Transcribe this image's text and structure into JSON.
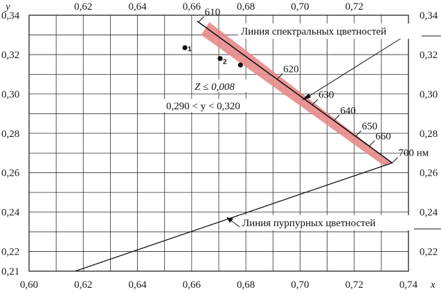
{
  "chart_data": {
    "type": "diagram",
    "axes": {
      "x": {
        "label": "x",
        "range": [
          0.6,
          0.74
        ],
        "grid_step": 0.01,
        "ticks": [
          "0,60",
          "0,62",
          "0,64",
          "0,66",
          "0,68",
          "0,70",
          "0,72",
          "0,74"
        ],
        "top_ticks": [
          "0,62",
          "0,64",
          "0,66",
          "0,68",
          "0,70",
          "0,72"
        ]
      },
      "y": {
        "label": "y",
        "range": [
          0.21,
          0.34
        ],
        "grid_step": 0.01,
        "ticks": [
          "0,34",
          "0,32",
          "0,30",
          "0,28",
          "0,26",
          "0,24",
          "0,22",
          "0,21"
        ],
        "right_ticks": [
          "0,34",
          "0,32",
          "0,30",
          "0,28",
          "0,26",
          "0,24",
          "0,22"
        ]
      },
      "grid": true
    },
    "spectral_locus": {
      "label": "Линия спектральных цветностей",
      "from": [
        0.662,
        0.337
      ],
      "to": [
        0.734,
        0.265
      ],
      "wavelength_marks": [
        {
          "label": "610",
          "x": 0.6625,
          "y": 0.3365
        },
        {
          "label": "620",
          "x": 0.6915,
          "y": 0.3075
        },
        {
          "label": "630",
          "x": 0.7045,
          "y": 0.2945
        },
        {
          "label": "640",
          "x": 0.7125,
          "y": 0.2865
        },
        {
          "label": "650",
          "x": 0.7205,
          "y": 0.2785
        },
        {
          "label": "660",
          "x": 0.7255,
          "y": 0.2735
        },
        {
          "label": "700 нм",
          "x": 0.734,
          "y": 0.265
        }
      ]
    },
    "purple_line": {
      "label": "Линия пурпурных цветностей",
      "from": [
        0.617,
        0.21
      ],
      "to": [
        0.734,
        0.265
      ]
    },
    "band": {
      "color": "#e88a8a",
      "points": [
        [
          0.6635,
          0.33
        ],
        [
          0.6665,
          0.3365
        ],
        [
          0.734,
          0.265
        ],
        [
          0.731,
          0.2635
        ]
      ]
    },
    "points": [
      {
        "label": "1",
        "x": 0.6575,
        "y": 0.3235
      },
      {
        "label": "2",
        "x": 0.6705,
        "y": 0.318
      },
      {
        "label": "",
        "x": 0.678,
        "y": 0.3147
      }
    ],
    "annotations": {
      "z_condition": "Z ≤ 0,008",
      "y_condition": "0,290 < y < 0,320"
    }
  }
}
